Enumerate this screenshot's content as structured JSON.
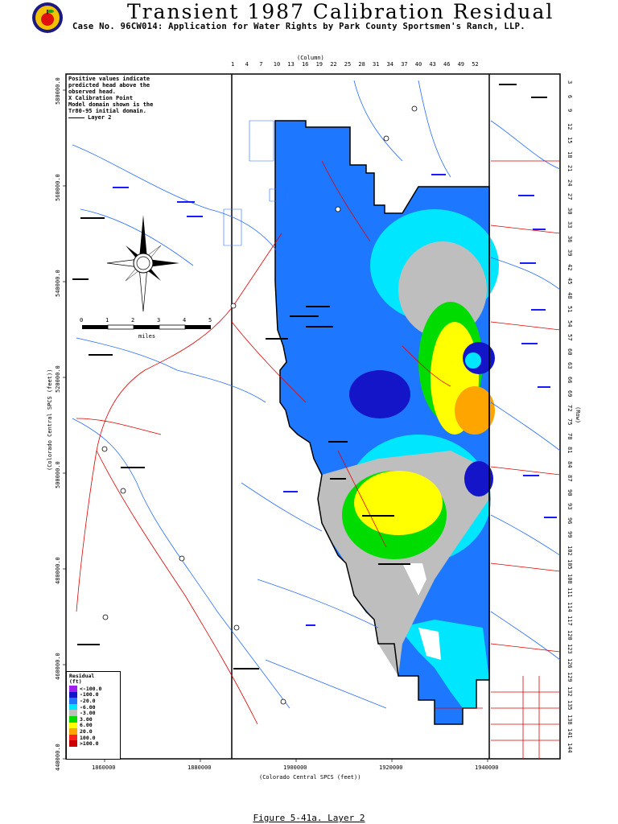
{
  "header": {
    "title": "Transient 1987 Calibration Residual",
    "subtitle": "Case No. 96CW014: Application for Water Rights by Park County Sportsmen's Ranch, LLP."
  },
  "caption": "Figure 5-41a. Layer 2",
  "map": {
    "x_axis_title": "(Colorado Central SPCS (feet))",
    "y_axis_title": "(Colorado Central SPCS (feet))",
    "x_ticks": [
      "1860000",
      "1880000",
      "1900000",
      "1920000",
      "1940000"
    ],
    "y_ticks": [
      "580000.0",
      "560000.0",
      "540000.0",
      "520000.0",
      "500000.0",
      "480000.0",
      "460000.0",
      "440000.0"
    ],
    "column_title": "(Column)",
    "column_ticks": [
      "1",
      "4",
      "7",
      "10",
      "13",
      "16",
      "19",
      "22",
      "25",
      "28",
      "31",
      "34",
      "37",
      "40",
      "43",
      "46",
      "49",
      "52"
    ],
    "row_title": "(Row)",
    "row_ticks": [
      "3",
      "6",
      "9",
      "12",
      "15",
      "18",
      "21",
      "24",
      "27",
      "30",
      "33",
      "36",
      "39",
      "42",
      "45",
      "48",
      "51",
      "54",
      "57",
      "60",
      "63",
      "66",
      "69",
      "72",
      "75",
      "78",
      "81",
      "84",
      "87",
      "90",
      "93",
      "96",
      "99",
      "102",
      "105",
      "108",
      "111",
      "114",
      "117",
      "120",
      "123",
      "126",
      "129",
      "132",
      "135",
      "138",
      "141",
      "144"
    ]
  },
  "note": {
    "line1": "Positive values indicate predicted head above the observed head.",
    "line2": "X  Calibration Point",
    "line3": "Model domain shown is the Tr80-95 initial domain.",
    "line4": "Layer 2"
  },
  "scale_bar": {
    "ticks": [
      "0",
      "1",
      "2",
      "3",
      "4",
      "5"
    ],
    "unit": "miles"
  },
  "legend": {
    "title": "Residual",
    "unit": "(ft)",
    "items": [
      {
        "label": "<-100.0",
        "color": "#a020f0"
      },
      {
        "label": "-100.0",
        "color": "#1414c8"
      },
      {
        "label": "-20.0",
        "color": "#1e78ff"
      },
      {
        "label": "-6.00",
        "color": "#00e6ff"
      },
      {
        "label": "-3.00",
        "color": "#bebebe"
      },
      {
        "label": "3.00",
        "color": "#00dc00"
      },
      {
        "label": "6.00",
        "color": "#ffff00"
      },
      {
        "label": "20.0",
        "color": "#ffa500"
      },
      {
        "label": "100.0",
        "color": "#ff2020"
      },
      {
        "label": ">100.0",
        "color": "#cc0000"
      }
    ]
  },
  "colors": {
    "river": "#2a6cff",
    "road": "#e00000",
    "boundary": "#000000",
    "label_blue": "#1a1aff"
  }
}
